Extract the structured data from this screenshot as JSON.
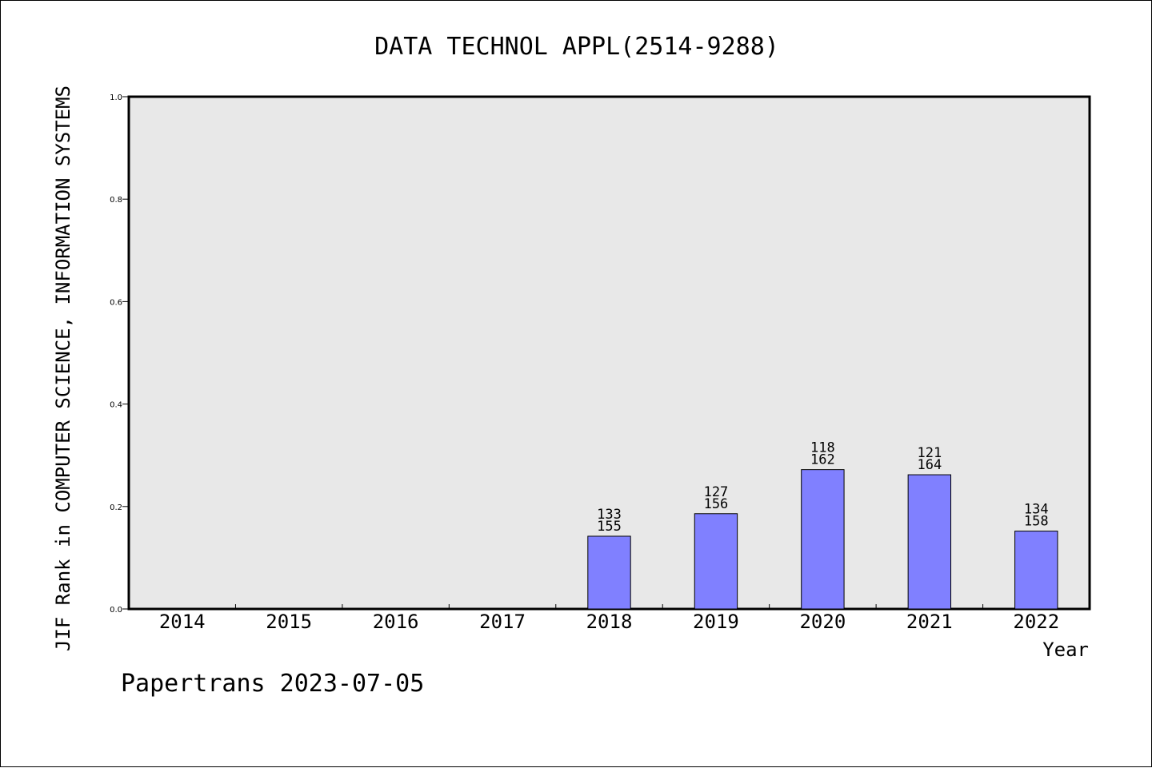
{
  "chart_data": {
    "type": "bar",
    "title": "DATA TECHNOL APPL(2514-9288)",
    "xlabel": "Year",
    "ylabel": "JIF Rank in COMPUTER SCIENCE, INFORMATION SYSTEMS",
    "footer": "Papertrans 2023-07-05",
    "ylim": [
      0,
      1
    ],
    "yticks": [
      "0.0",
      "0.2",
      "0.4",
      "0.6",
      "0.8",
      "1.0"
    ],
    "categories": [
      "2014",
      "2015",
      "2016",
      "2017",
      "2018",
      "2019",
      "2020",
      "2021",
      "2022"
    ],
    "values": [
      null,
      null,
      null,
      null,
      0.142,
      0.186,
      0.272,
      0.262,
      0.152
    ],
    "labels": [
      null,
      null,
      null,
      null,
      {
        "rank": "133",
        "total": "155"
      },
      {
        "rank": "127",
        "total": "156"
      },
      {
        "rank": "118",
        "total": "162"
      },
      {
        "rank": "121",
        "total": "164"
      },
      {
        "rank": "134",
        "total": "158"
      }
    ],
    "grid": false,
    "legend": "none",
    "colors": {
      "bar": "#8080ff",
      "plot_bg": "#e8e8e8",
      "axis": "#000000"
    }
  }
}
